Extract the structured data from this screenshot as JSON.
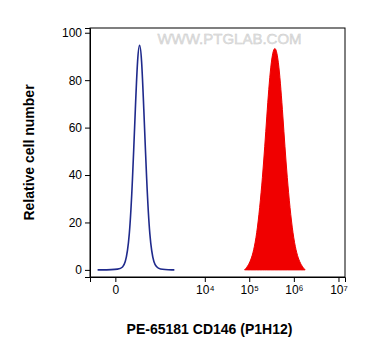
{
  "chart_data": {
    "type": "line",
    "x_label": "PE-65181 CD146 (P1H12)",
    "y_label": "Relative cell number",
    "annotations": [
      "WWW.PTGLAB.COM"
    ],
    "log": "x",
    "xlim": [
      -270,
      14000000
    ],
    "xticks": [
      0,
      {
        "value": 10000,
        "label": "10⁴"
      },
      {
        "value": 100000,
        "label": "10⁵"
      },
      {
        "value": 1000000,
        "label": "10⁶"
      },
      {
        "value": 10000000,
        "label": "10⁷"
      }
    ],
    "ylim": [
      -3,
      102
    ],
    "yticks": [
      0,
      20,
      40,
      60,
      80,
      100
    ],
    "series": [
      {
        "type": "line",
        "color": "#1f2a8c",
        "x": [
          -150,
          30,
          68,
          107,
          142,
          183,
          215,
          249,
          287,
          330,
          403,
          488,
          624,
          839,
          2000
        ],
        "values": [
          0,
          0,
          2,
          13,
          37,
          70,
          90,
          97,
          90,
          70,
          37,
          13,
          2,
          0,
          0
        ]
      },
      {
        "type": "area",
        "color": "#f00000",
        "x": [
          78600,
          107400,
          146800,
          200600,
          247100,
          304300,
          374900,
          461700,
          568700,
          700400,
          957300,
          1308700,
          1788600
        ],
        "values": [
          0,
          3,
          13,
          39,
          65,
          88,
          96,
          88,
          65,
          39,
          13,
          3,
          0
        ]
      }
    ]
  }
}
